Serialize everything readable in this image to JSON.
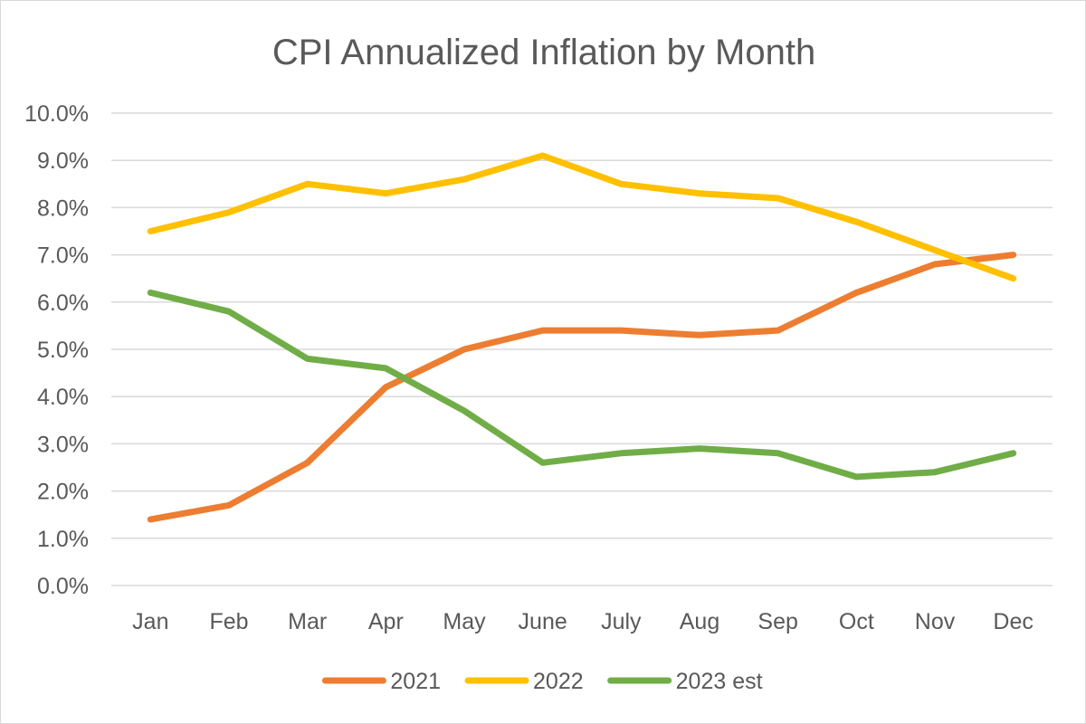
{
  "chart_data": {
    "type": "line",
    "title": "CPI  Annualized Inflation by Month",
    "categories": [
      "Jan",
      "Feb",
      "Mar",
      "Apr",
      "May",
      "June",
      "July",
      "Aug",
      "Sep",
      "Oct",
      "Nov",
      "Dec"
    ],
    "ylim": [
      0,
      10
    ],
    "y_ticks": [
      0,
      1,
      2,
      3,
      4,
      5,
      6,
      7,
      8,
      9,
      10
    ],
    "y_tick_labels": [
      "0.0%",
      "1.0%",
      "2.0%",
      "3.0%",
      "4.0%",
      "5.0%",
      "6.0%",
      "7.0%",
      "8.0%",
      "9.0%",
      "10.0%"
    ],
    "grid": true,
    "legend_position": "bottom",
    "series": [
      {
        "name": "2021",
        "color": "#ed7d31",
        "values": [
          1.4,
          1.7,
          2.6,
          4.2,
          5.0,
          5.4,
          5.4,
          5.3,
          5.4,
          6.2,
          6.8,
          7.0
        ]
      },
      {
        "name": "2022",
        "color": "#ffc000",
        "values": [
          7.5,
          7.9,
          8.5,
          8.3,
          8.6,
          9.1,
          8.5,
          8.3,
          8.2,
          7.7,
          7.1,
          6.5
        ]
      },
      {
        "name": "2023 est",
        "color": "#70ad47",
        "values": [
          6.2,
          5.8,
          4.8,
          4.6,
          3.7,
          2.6,
          2.8,
          2.9,
          2.8,
          2.3,
          2.4,
          2.8
        ]
      }
    ]
  }
}
